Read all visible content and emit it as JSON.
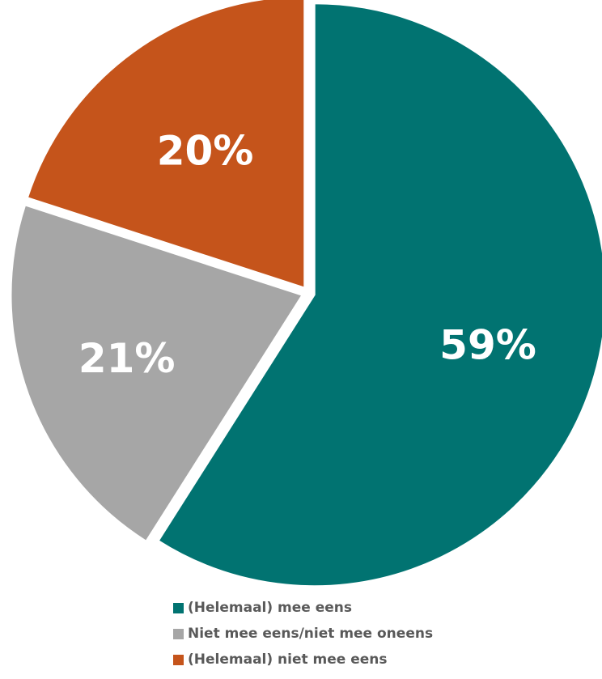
{
  "chart_data": {
    "type": "pie",
    "title": "",
    "slices": [
      {
        "label": "(Helemaal) mee eens",
        "value": 59,
        "display": "59%",
        "color": "#017371"
      },
      {
        "label": "Niet mee eens/niet mee oneens",
        "value": 21,
        "display": "21%",
        "color": "#a6a6a6"
      },
      {
        "label": "(Helemaal) niet mee eens",
        "value": 20,
        "display": "20%",
        "color": "#c5541b"
      }
    ],
    "legend_position": "bottom"
  }
}
